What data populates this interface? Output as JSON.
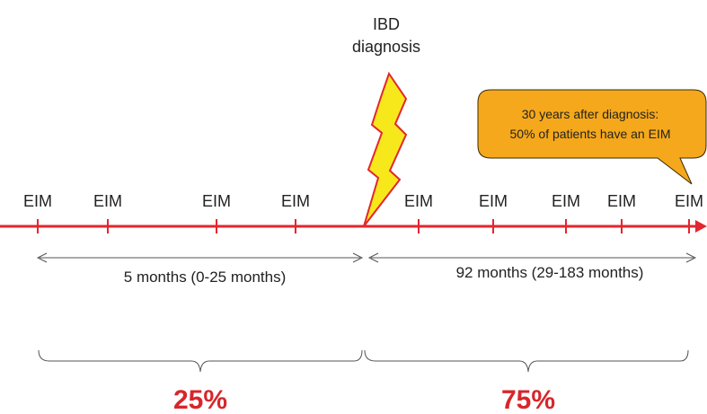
{
  "diagnosis": {
    "line1": "IBD",
    "line2": "diagnosis"
  },
  "callout": {
    "line1": "30 years after diagnosis:",
    "line2": "50% of patients have an EIM"
  },
  "eim_label": "EIM",
  "before": {
    "duration": "5 months (0-25 months)",
    "percent": "25%"
  },
  "after": {
    "duration": "92 months (29-183 months)",
    "percent": "75%"
  },
  "colors": {
    "timeline": "#e3262e",
    "bolt_fill": "#f7e81c",
    "bolt_stroke": "#e3262e",
    "callout_fill": "#f5a81b",
    "percent": "#d7262b",
    "guide": "#555555"
  }
}
